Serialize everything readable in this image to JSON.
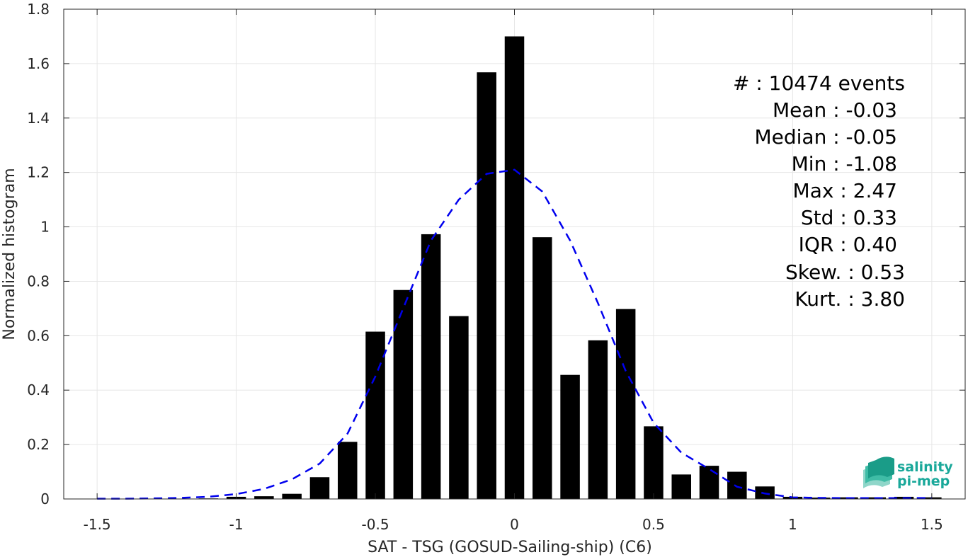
{
  "chart_data": {
    "type": "bar",
    "xlabel": "SAT - TSG (GOSUD-Sailing-ship) (C6)",
    "ylabel": "Normalized histogram",
    "xlim": [
      -1.62,
      1.62
    ],
    "ylim": [
      0,
      1.8
    ],
    "xticks": [
      -1.5,
      -1,
      -0.5,
      0,
      0.5,
      1,
      1.5
    ],
    "xtick_labels": [
      "-1.5",
      "-1",
      "-0.5",
      "0",
      "0.5",
      "1",
      "1.5"
    ],
    "yticks": [
      0,
      0.2,
      0.4,
      0.6,
      0.8,
      1,
      1.2,
      1.4,
      1.6,
      1.8
    ],
    "ytick_labels": [
      "0",
      "0.2",
      "0.4",
      "0.6",
      "0.8",
      "1",
      "1.2",
      "1.4",
      "1.6",
      "1.8"
    ],
    "grid": true,
    "bar_width": 0.07,
    "bar_color": "#000000",
    "bins": {
      "x": [
        -1.5,
        -1.4,
        -1.3,
        -1.2,
        -1.1,
        -1.0,
        -0.9,
        -0.8,
        -0.7,
        -0.6,
        -0.5,
        -0.4,
        -0.3,
        -0.2,
        -0.1,
        0.0,
        0.1,
        0.2,
        0.3,
        0.4,
        0.5,
        0.6,
        0.7,
        0.8,
        0.9,
        1.0,
        1.1,
        1.2,
        1.3,
        1.4,
        1.5
      ],
      "values": [
        0,
        0,
        0,
        0,
        0.002,
        0.008,
        0.01,
        0.019,
        0.08,
        0.21,
        0.615,
        0.768,
        0.973,
        0.672,
        1.568,
        1.7,
        0.962,
        0.456,
        0.583,
        0.698,
        0.267,
        0.09,
        0.122,
        0.1,
        0.046,
        0.008,
        0.005,
        0.006,
        0.006,
        0.008,
        0.006
      ]
    },
    "fit_curve": {
      "style": "dashed",
      "color": "#0000ee",
      "x": [
        -1.5,
        -1.4,
        -1.3,
        -1.2,
        -1.1,
        -1.0,
        -0.9,
        -0.8,
        -0.7,
        -0.6,
        -0.5,
        -0.4,
        -0.3,
        -0.2,
        -0.1,
        0.0,
        0.1,
        0.2,
        0.3,
        0.4,
        0.5,
        0.6,
        0.7,
        0.8,
        0.9,
        1.0,
        1.1,
        1.2,
        1.3,
        1.4,
        1.5
      ],
      "y": [
        0.001,
        0.001,
        0.002,
        0.004,
        0.008,
        0.018,
        0.037,
        0.072,
        0.13,
        0.24,
        0.45,
        0.7,
        0.95,
        1.1,
        1.195,
        1.21,
        1.13,
        0.95,
        0.72,
        0.47,
        0.28,
        0.17,
        0.11,
        0.045,
        0.02,
        0.006,
        0.004,
        0.003,
        0.003,
        0.003,
        0.004
      ]
    },
    "stats": [
      "#  : 10474 events",
      "Mean : -0.03",
      "Median : -0.05",
      "Min : -1.08",
      "Max : 2.47",
      "Std : 0.33",
      "IQR : 0.40",
      "Skew. : 0.53",
      "Kurt. : 3.80"
    ]
  },
  "logo": {
    "line1": "salinity",
    "line2": "pi-mep",
    "color": "#1aa89a"
  }
}
